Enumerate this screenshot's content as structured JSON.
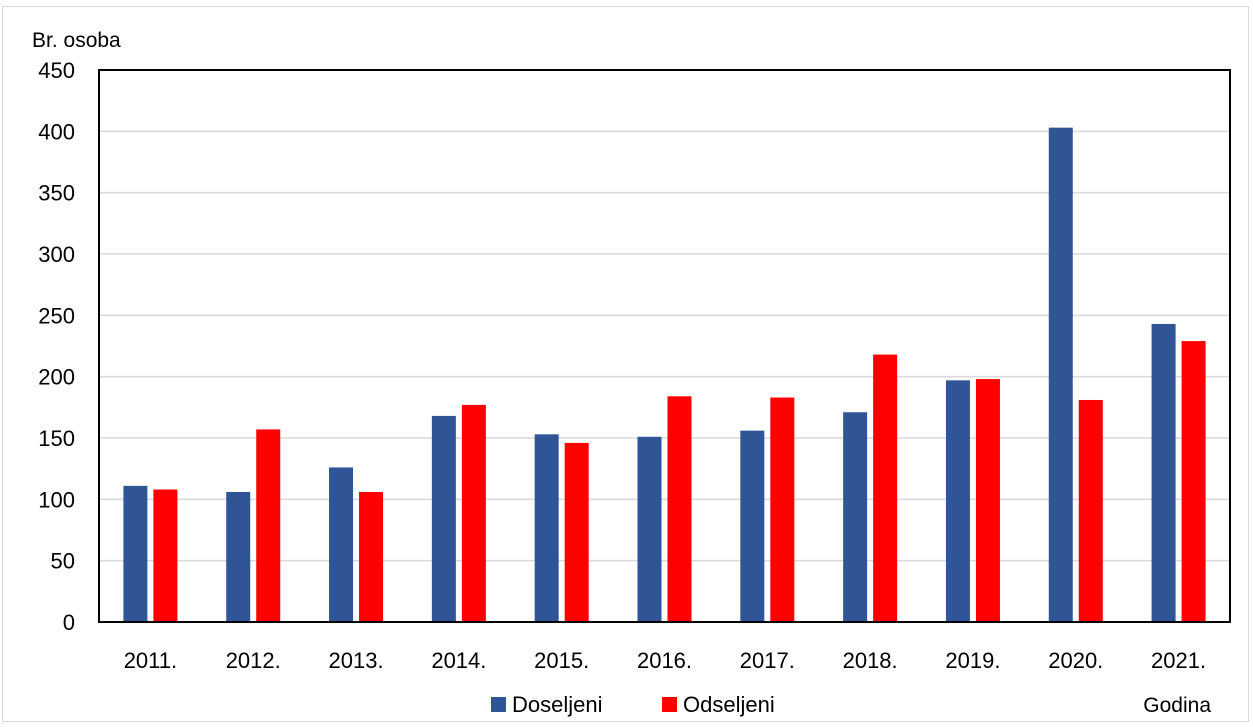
{
  "chart_data": {
    "type": "bar",
    "title": "",
    "ylabel": "Br. osoba",
    "xlabel": "Godina",
    "ylim": [
      0,
      450
    ],
    "yticks": [
      "0",
      "50",
      "100",
      "150",
      "200",
      "250",
      "300",
      "350",
      "400",
      "450"
    ],
    "grid": true,
    "legend_position": "bottom",
    "categories": [
      "2011.",
      "2012.",
      "2013.",
      "2014.",
      "2015.",
      "2016.",
      "2017.",
      "2018.",
      "2019.",
      "2020.",
      "2021."
    ],
    "series": [
      {
        "name": "Doseljeni",
        "color": "#2F5597",
        "values": [
          111,
          106,
          126,
          168,
          153,
          151,
          156,
          171,
          197,
          403,
          243
        ]
      },
      {
        "name": "Odseljeni",
        "color": "#FF0000",
        "values": [
          108,
          157,
          106,
          177,
          146,
          184,
          183,
          218,
          198,
          181,
          229
        ]
      }
    ]
  }
}
